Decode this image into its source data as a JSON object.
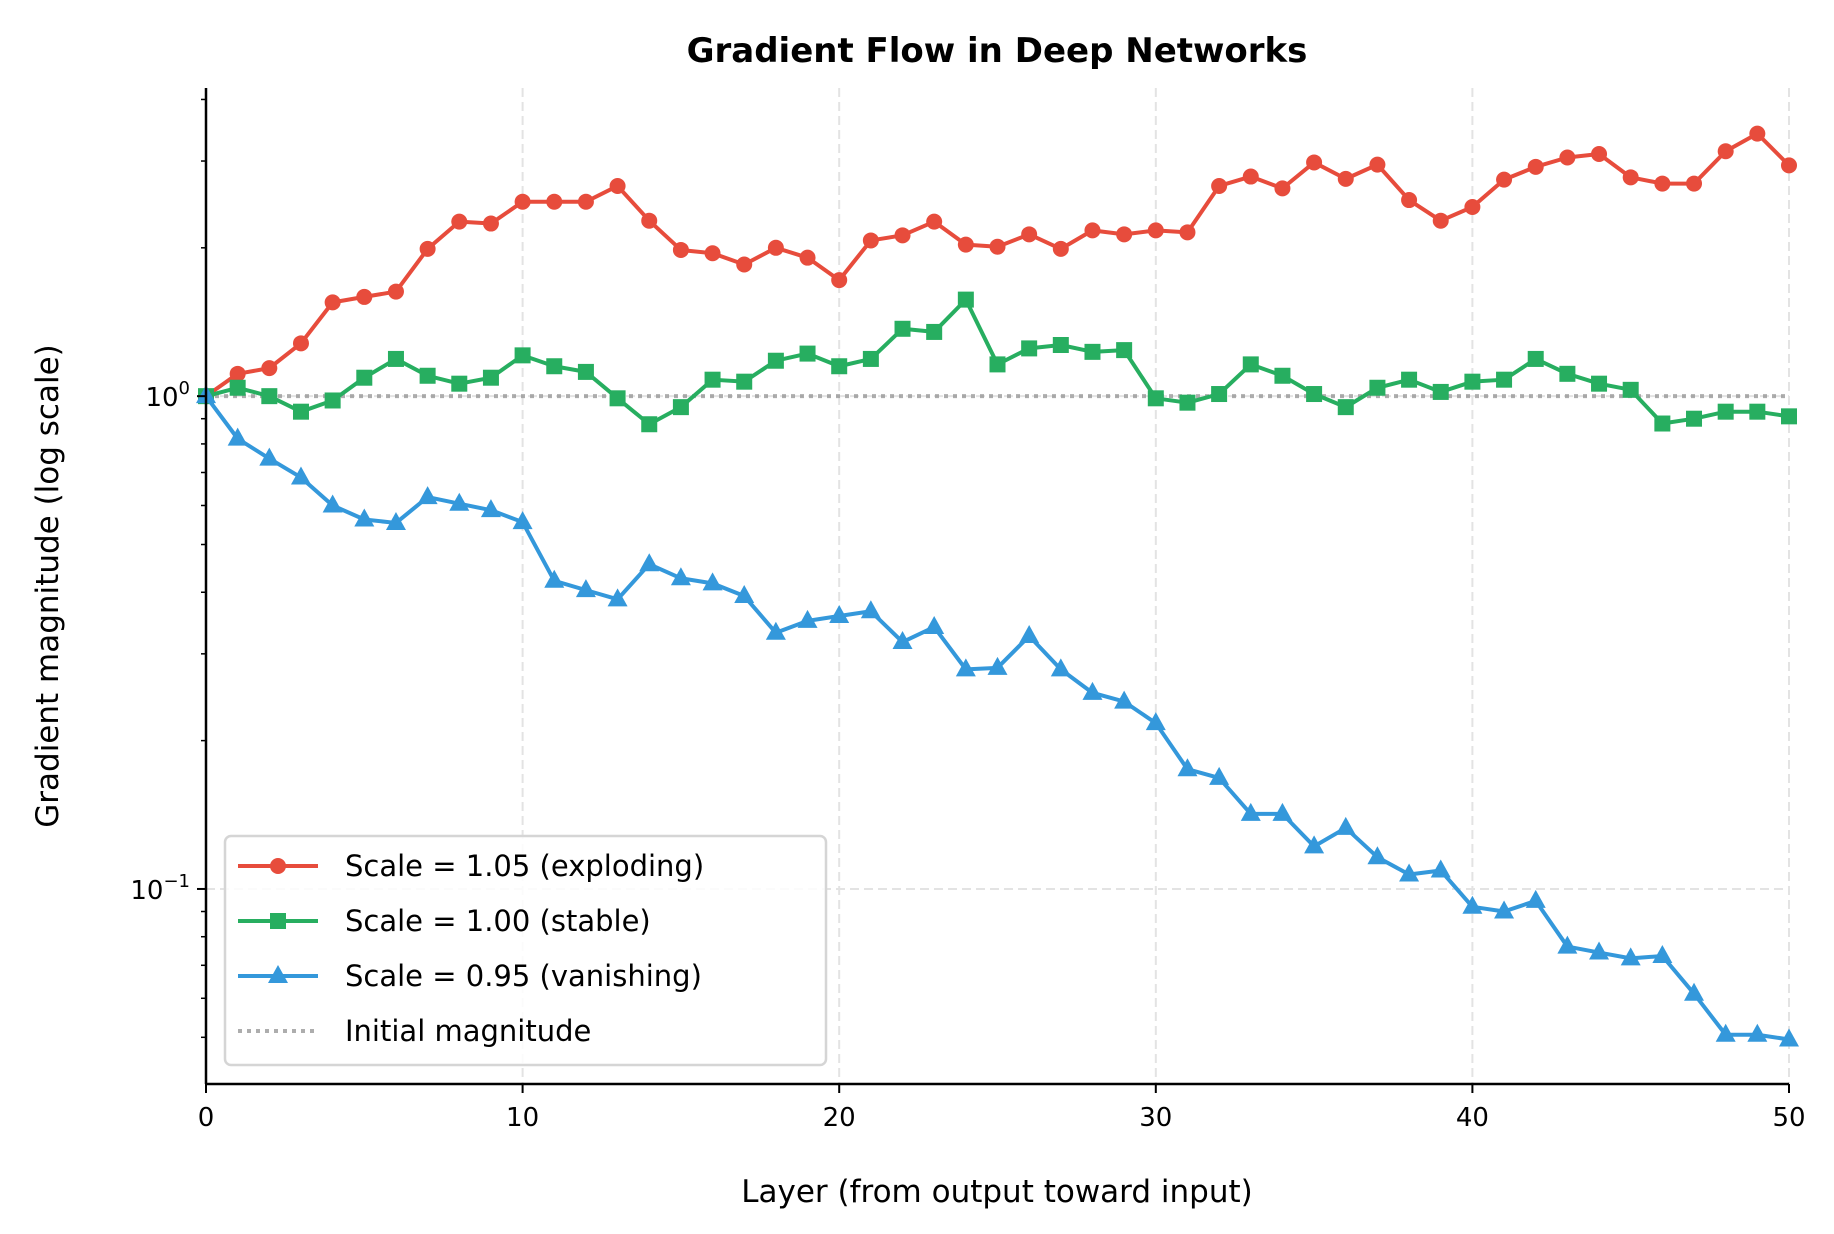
{
  "chart_data": {
    "type": "line",
    "title": "Gradient Flow in Deep Networks",
    "xlabel": "Layer (from output toward input)",
    "ylabel": "Gradient magnitude (log scale)",
    "xlim": [
      0,
      50
    ],
    "ylim": [
      0.0402,
      4.22
    ],
    "yscale": "log",
    "xticks": [
      0,
      10,
      20,
      30,
      40,
      50
    ],
    "xtick_labels": [
      "0",
      "10",
      "20",
      "30",
      "40",
      "50"
    ],
    "yticks": [
      0.1,
      1
    ],
    "ytick_labels": [
      {
        "base": "10",
        "exp": "−1"
      },
      {
        "base": "10",
        "exp": "0"
      }
    ],
    "grid": true,
    "legend_placement": "lower-left",
    "x": [
      0,
      1,
      2,
      3,
      4,
      5,
      6,
      7,
      8,
      9,
      10,
      11,
      12,
      13,
      14,
      15,
      16,
      17,
      18,
      19,
      20,
      21,
      22,
      23,
      24,
      25,
      26,
      27,
      28,
      29,
      30,
      31,
      32,
      33,
      34,
      35,
      36,
      37,
      38,
      39,
      40,
      41,
      42,
      43,
      44,
      45,
      46,
      47,
      48,
      49,
      50
    ],
    "series": [
      {
        "name": "Scale = 1.05 (exploding)",
        "color": "#e74c3c",
        "marker": "circle",
        "values": [
          1.0,
          1.11,
          1.14,
          1.28,
          1.55,
          1.59,
          1.63,
          1.99,
          2.26,
          2.24,
          2.48,
          2.48,
          2.48,
          2.67,
          2.27,
          1.98,
          1.95,
          1.85,
          2.0,
          1.91,
          1.72,
          2.07,
          2.12,
          2.26,
          2.03,
          2.01,
          2.13,
          1.99,
          2.17,
          2.13,
          2.17,
          2.15,
          2.67,
          2.79,
          2.64,
          2.98,
          2.76,
          2.95,
          2.5,
          2.27,
          2.42,
          2.75,
          2.92,
          3.05,
          3.1,
          2.78,
          2.7,
          2.7,
          3.14,
          3.41,
          2.94
        ]
      },
      {
        "name": "Scale = 1.00 (stable)",
        "color": "#27ae60",
        "marker": "square",
        "values": [
          1.0,
          1.04,
          1.0,
          0.93,
          0.98,
          1.09,
          1.19,
          1.1,
          1.06,
          1.09,
          1.21,
          1.15,
          1.12,
          0.99,
          0.877,
          0.95,
          1.08,
          1.07,
          1.18,
          1.22,
          1.15,
          1.19,
          1.37,
          1.35,
          1.57,
          1.16,
          1.25,
          1.27,
          1.23,
          1.24,
          0.99,
          0.97,
          1.01,
          1.16,
          1.1,
          1.01,
          0.95,
          1.04,
          1.08,
          1.02,
          1.07,
          1.08,
          1.19,
          1.11,
          1.06,
          1.03,
          0.88,
          0.9,
          0.93,
          0.93,
          0.91
        ]
      },
      {
        "name": "Scale = 0.95 (vanishing)",
        "color": "#3498db",
        "marker": "triangle",
        "values": [
          1.0,
          0.82,
          0.747,
          0.684,
          0.6,
          0.562,
          0.553,
          0.624,
          0.605,
          0.587,
          0.555,
          0.422,
          0.404,
          0.387,
          0.456,
          0.427,
          0.417,
          0.393,
          0.331,
          0.35,
          0.358,
          0.366,
          0.317,
          0.34,
          0.279,
          0.281,
          0.326,
          0.279,
          0.25,
          0.24,
          0.217,
          0.175,
          0.168,
          0.142,
          0.142,
          0.122,
          0.133,
          0.116,
          0.107,
          0.109,
          0.092,
          0.09,
          0.0946,
          0.0764,
          0.0743,
          0.0723,
          0.0731,
          0.0613,
          0.0506,
          0.0506,
          0.0495
        ]
      }
    ],
    "reference_line": {
      "name": "Initial magnitude",
      "y": 1.0,
      "color": "#999999",
      "style": "dotted"
    }
  }
}
